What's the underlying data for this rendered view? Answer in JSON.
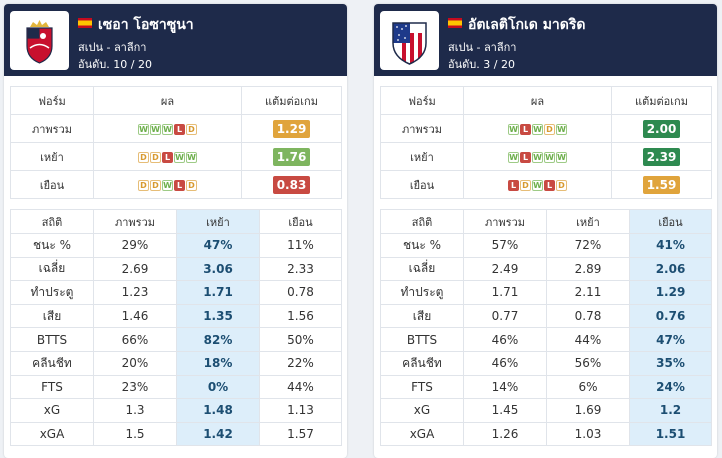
{
  "headers": {
    "form_col": "ฟอร์ม",
    "result_col": "ผล",
    "ppg_col": "แต้มต่อเกม",
    "stat_col": "สถิติ",
    "overall_col": "ภาพรวม",
    "home_col": "เหย้า",
    "away_col": "เยือน"
  },
  "left": {
    "name": "เซอา โอซาซูนา",
    "league": "สเปน - ลาลีกา",
    "rank": "อันดับ. 10 / 20",
    "logo_icon": "osasuna-crest-icon",
    "form_rows": [
      {
        "label": "ภาพรวม",
        "results": [
          "W",
          "W",
          "W",
          "L",
          "D"
        ],
        "ppg": "1.29",
        "ppg_color": "#e0a43c"
      },
      {
        "label": "เหย้า",
        "results": [
          "D",
          "D",
          "L",
          "W",
          "W"
        ],
        "ppg": "1.76",
        "ppg_color": "#7eb55f"
      },
      {
        "label": "เยือน",
        "results": [
          "D",
          "D",
          "W",
          "L",
          "D"
        ],
        "ppg": "0.83",
        "ppg_color": "#c84a42"
      }
    ],
    "highlight_col": 1,
    "stats": [
      {
        "label": "ชนะ %",
        "overall": "29%",
        "home": "47%",
        "away": "11%"
      },
      {
        "label": "เฉลี่ย",
        "overall": "2.69",
        "home": "3.06",
        "away": "2.33"
      },
      {
        "label": "ทำประตู",
        "overall": "1.23",
        "home": "1.71",
        "away": "0.78"
      },
      {
        "label": "เสีย",
        "overall": "1.46",
        "home": "1.35",
        "away": "1.56"
      },
      {
        "label": "BTTS",
        "overall": "66%",
        "home": "82%",
        "away": "50%"
      },
      {
        "label": "คลีนชีท",
        "overall": "20%",
        "home": "18%",
        "away": "22%"
      },
      {
        "label": "FTS",
        "overall": "23%",
        "home": "0%",
        "away": "44%"
      },
      {
        "label": "xG",
        "overall": "1.3",
        "home": "1.48",
        "away": "1.13"
      },
      {
        "label": "xGA",
        "overall": "1.5",
        "home": "1.42",
        "away": "1.57"
      }
    ]
  },
  "right": {
    "name": "อัตเลติโกเด มาดริด",
    "league": "สเปน - ลาลีกา",
    "rank": "อันดับ. 3 / 20",
    "logo_icon": "atletico-crest-icon",
    "form_rows": [
      {
        "label": "ภาพรวม",
        "results": [
          "W",
          "L",
          "W",
          "D",
          "W"
        ],
        "ppg": "2.00",
        "ppg_color": "#2e8a50"
      },
      {
        "label": "เหย้า",
        "results": [
          "W",
          "L",
          "W",
          "W",
          "W"
        ],
        "ppg": "2.39",
        "ppg_color": "#2e8a50"
      },
      {
        "label": "เยือน",
        "results": [
          "L",
          "D",
          "W",
          "L",
          "D"
        ],
        "ppg": "1.59",
        "ppg_color": "#e0a43c"
      }
    ],
    "highlight_col": 2,
    "stats": [
      {
        "label": "ชนะ %",
        "overall": "57%",
        "home": "72%",
        "away": "41%"
      },
      {
        "label": "เฉลี่ย",
        "overall": "2.49",
        "home": "2.89",
        "away": "2.06"
      },
      {
        "label": "ทำประตู",
        "overall": "1.71",
        "home": "2.11",
        "away": "1.29"
      },
      {
        "label": "เสีย",
        "overall": "0.77",
        "home": "0.78",
        "away": "0.76"
      },
      {
        "label": "BTTS",
        "overall": "46%",
        "home": "44%",
        "away": "47%"
      },
      {
        "label": "คลีนชีท",
        "overall": "46%",
        "home": "56%",
        "away": "35%"
      },
      {
        "label": "FTS",
        "overall": "14%",
        "home": "6%",
        "away": "24%"
      },
      {
        "label": "xG",
        "overall": "1.45",
        "home": "1.69",
        "away": "1.2"
      },
      {
        "label": "xGA",
        "overall": "1.26",
        "home": "1.03",
        "away": "1.51"
      }
    ]
  }
}
